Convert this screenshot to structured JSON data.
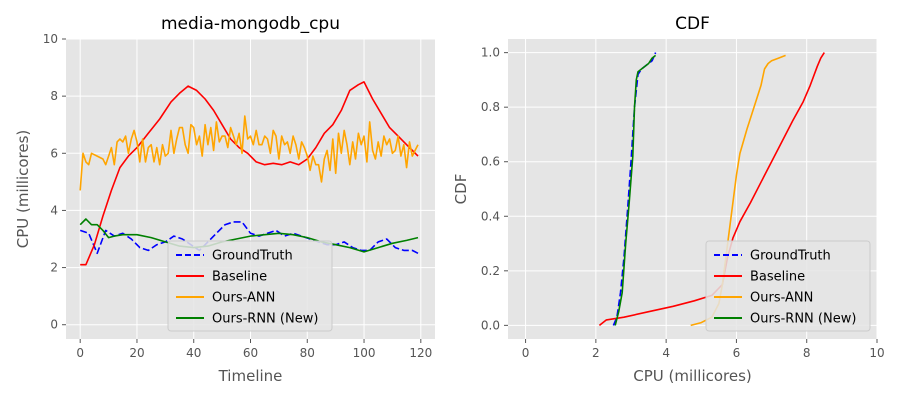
{
  "chart_data": [
    {
      "type": "line",
      "title": "media-mongodb_cpu",
      "xlabel": "Timeline",
      "ylabel": "CPU (millicores)",
      "xlim": [
        -5,
        125
      ],
      "ylim": [
        -0.5,
        10
      ],
      "xticks": [
        0,
        20,
        40,
        60,
        80,
        100,
        120
      ],
      "yticks": [
        0,
        2,
        4,
        6,
        8,
        10
      ],
      "grid": true,
      "legend_position": "lower center",
      "series": [
        {
          "name": "GroundTruth",
          "color": "#0000ff",
          "style": "dashed",
          "x": [
            0,
            3,
            6,
            9,
            12,
            15,
            18,
            21,
            24,
            27,
            30,
            33,
            36,
            39,
            42,
            45,
            48,
            51,
            54,
            57,
            60,
            63,
            66,
            69,
            72,
            75,
            78,
            81,
            84,
            87,
            90,
            93,
            96,
            99,
            102,
            105,
            108,
            111,
            114,
            117,
            119
          ],
          "y": [
            3.3,
            3.2,
            2.5,
            3.3,
            3.1,
            3.2,
            3.0,
            2.7,
            2.6,
            2.8,
            2.9,
            3.1,
            3.0,
            2.8,
            2.6,
            2.9,
            3.2,
            3.5,
            3.6,
            3.6,
            3.2,
            3.1,
            3.2,
            3.3,
            3.1,
            3.2,
            3.1,
            3.0,
            2.9,
            2.8,
            2.8,
            2.9,
            2.7,
            2.6,
            2.6,
            2.9,
            3.0,
            2.7,
            2.6,
            2.6,
            2.5
          ]
        },
        {
          "name": "Baseline",
          "color": "#ff0000",
          "style": "solid",
          "x": [
            0,
            2,
            5,
            8,
            11,
            14,
            17,
            20,
            24,
            28,
            32,
            35,
            38,
            41,
            44,
            47,
            50,
            53,
            56,
            59,
            62,
            65,
            68,
            71,
            74,
            77,
            80,
            83,
            86,
            89,
            92,
            95,
            98,
            100,
            103,
            106,
            109,
            112,
            115,
            119
          ],
          "y": [
            2.1,
            2.1,
            2.8,
            3.8,
            4.7,
            5.5,
            5.9,
            6.2,
            6.7,
            7.2,
            7.8,
            8.1,
            8.35,
            8.2,
            7.9,
            7.5,
            7.0,
            6.5,
            6.2,
            6.0,
            5.7,
            5.6,
            5.65,
            5.6,
            5.7,
            5.6,
            5.8,
            6.2,
            6.7,
            7.0,
            7.5,
            8.2,
            8.4,
            8.5,
            7.9,
            7.4,
            6.9,
            6.6,
            6.3,
            5.9
          ]
        },
        {
          "name": "Ours-ANN",
          "color": "#ffa500",
          "style": "solid",
          "x": [
            0,
            1,
            2,
            3,
            4,
            6,
            8,
            9,
            10,
            11,
            12,
            13,
            14,
            15,
            16,
            17,
            18,
            19,
            20,
            21,
            22,
            23,
            24,
            25,
            26,
            27,
            28,
            29,
            30,
            31,
            32,
            33,
            34,
            35,
            36,
            37,
            38,
            39,
            40,
            41,
            42,
            43,
            44,
            45,
            46,
            47,
            48,
            49,
            50,
            51,
            52,
            53,
            54,
            55,
            56,
            57,
            58,
            59,
            60,
            61,
            62,
            63,
            64,
            65,
            66,
            67,
            68,
            69,
            70,
            71,
            72,
            73,
            74,
            75,
            76,
            77,
            78,
            79,
            80,
            81,
            82,
            83,
            84,
            85,
            86,
            87,
            88,
            89,
            90,
            91,
            92,
            93,
            94,
            95,
            96,
            97,
            98,
            99,
            100,
            101,
            102,
            103,
            104,
            105,
            106,
            107,
            108,
            109,
            110,
            111,
            112,
            113,
            114,
            115,
            116,
            117,
            118,
            119
          ],
          "y": [
            4.7,
            6.0,
            5.7,
            5.6,
            6.0,
            5.9,
            5.8,
            5.6,
            5.9,
            6.2,
            5.6,
            6.4,
            6.5,
            6.4,
            6.6,
            6.0,
            6.5,
            6.8,
            6.4,
            5.7,
            6.5,
            5.7,
            6.2,
            6.3,
            5.7,
            6.2,
            5.6,
            6.3,
            5.9,
            6.0,
            6.8,
            6.0,
            6.5,
            6.9,
            6.9,
            6.3,
            6.0,
            7.0,
            6.9,
            6.3,
            6.6,
            5.9,
            7.0,
            6.3,
            6.9,
            6.1,
            7.1,
            6.4,
            6.6,
            6.6,
            6.2,
            6.9,
            6.6,
            6.3,
            6.7,
            6.0,
            7.3,
            6.5,
            6.6,
            6.3,
            6.8,
            6.3,
            6.3,
            6.6,
            6.5,
            6.0,
            6.8,
            6.6,
            5.8,
            6.6,
            6.3,
            6.4,
            6.0,
            6.6,
            6.3,
            5.8,
            6.4,
            6.2,
            5.9,
            5.4,
            5.9,
            5.6,
            5.6,
            5.0,
            5.8,
            6.1,
            5.4,
            6.5,
            5.3,
            6.7,
            6.0,
            6.8,
            6.3,
            5.6,
            6.4,
            5.8,
            6.7,
            6.3,
            6.6,
            5.7,
            7.1,
            6.1,
            5.8,
            6.4,
            5.9,
            6.6,
            6.3,
            6.5,
            6.0,
            6.1,
            6.6,
            5.9,
            6.3,
            5.5,
            6.4,
            5.9,
            6.1,
            6.3
          ]
        },
        {
          "name": "Ours-RNN (New)",
          "color": "#008000",
          "style": "solid",
          "x": [
            0,
            2,
            4,
            6,
            8,
            10,
            12,
            15,
            20,
            25,
            30,
            35,
            40,
            45,
            50,
            55,
            60,
            65,
            70,
            75,
            80,
            85,
            90,
            95,
            100,
            105,
            110,
            115,
            119
          ],
          "y": [
            3.5,
            3.7,
            3.5,
            3.5,
            3.3,
            3.05,
            3.1,
            3.15,
            3.15,
            3.05,
            2.9,
            2.75,
            2.7,
            2.75,
            2.9,
            3.0,
            3.1,
            3.15,
            3.2,
            3.15,
            3.05,
            2.9,
            2.8,
            2.7,
            2.55,
            2.7,
            2.85,
            2.95,
            3.05
          ]
        }
      ]
    },
    {
      "type": "line",
      "title": "CDF",
      "xlabel": "CPU (millicores)",
      "ylabel": "CDF",
      "xlim": [
        -0.5,
        10
      ],
      "ylim": [
        -0.05,
        1.05
      ],
      "xticks": [
        0,
        2,
        4,
        6,
        8,
        10
      ],
      "yticks": [
        0.0,
        0.2,
        0.4,
        0.6,
        0.8,
        1.0
      ],
      "grid": true,
      "legend_position": "lower right",
      "series": [
        {
          "name": "GroundTruth",
          "color": "#0000ff",
          "style": "dashed",
          "x": [
            2.5,
            2.6,
            2.7,
            2.8,
            2.9,
            3.0,
            3.1,
            3.2,
            3.3,
            3.5,
            3.6,
            3.7
          ],
          "y": [
            0.0,
            0.03,
            0.12,
            0.25,
            0.42,
            0.6,
            0.8,
            0.92,
            0.94,
            0.96,
            0.97,
            1.0
          ]
        },
        {
          "name": "Baseline",
          "color": "#ff0000",
          "style": "solid",
          "x": [
            2.1,
            2.3,
            2.8,
            3.5,
            4.2,
            4.8,
            5.3,
            5.6,
            5.75,
            5.9,
            6.1,
            6.4,
            6.8,
            7.2,
            7.6,
            7.9,
            8.1,
            8.3,
            8.4,
            8.5
          ],
          "y": [
            0.0,
            0.02,
            0.03,
            0.05,
            0.07,
            0.09,
            0.11,
            0.15,
            0.25,
            0.32,
            0.38,
            0.45,
            0.55,
            0.65,
            0.75,
            0.82,
            0.88,
            0.95,
            0.98,
            1.0
          ]
        },
        {
          "name": "Ours-ANN",
          "color": "#ffa500",
          "style": "solid",
          "x": [
            4.7,
            5.0,
            5.3,
            5.5,
            5.6,
            5.7,
            5.8,
            5.9,
            6.0,
            6.1,
            6.3,
            6.5,
            6.7,
            6.8,
            6.9,
            7.0,
            7.2,
            7.4
          ],
          "y": [
            0.0,
            0.01,
            0.03,
            0.08,
            0.15,
            0.25,
            0.35,
            0.45,
            0.55,
            0.63,
            0.72,
            0.8,
            0.88,
            0.94,
            0.96,
            0.97,
            0.98,
            0.99
          ]
        },
        {
          "name": "Ours-RNN (New)",
          "color": "#008000",
          "style": "solid",
          "x": [
            2.55,
            2.65,
            2.75,
            2.85,
            2.95,
            3.05,
            3.1,
            3.15,
            3.2,
            3.3,
            3.5,
            3.6,
            3.7
          ],
          "y": [
            0.0,
            0.05,
            0.12,
            0.3,
            0.45,
            0.62,
            0.8,
            0.9,
            0.93,
            0.94,
            0.96,
            0.98,
            0.99
          ]
        }
      ]
    }
  ]
}
